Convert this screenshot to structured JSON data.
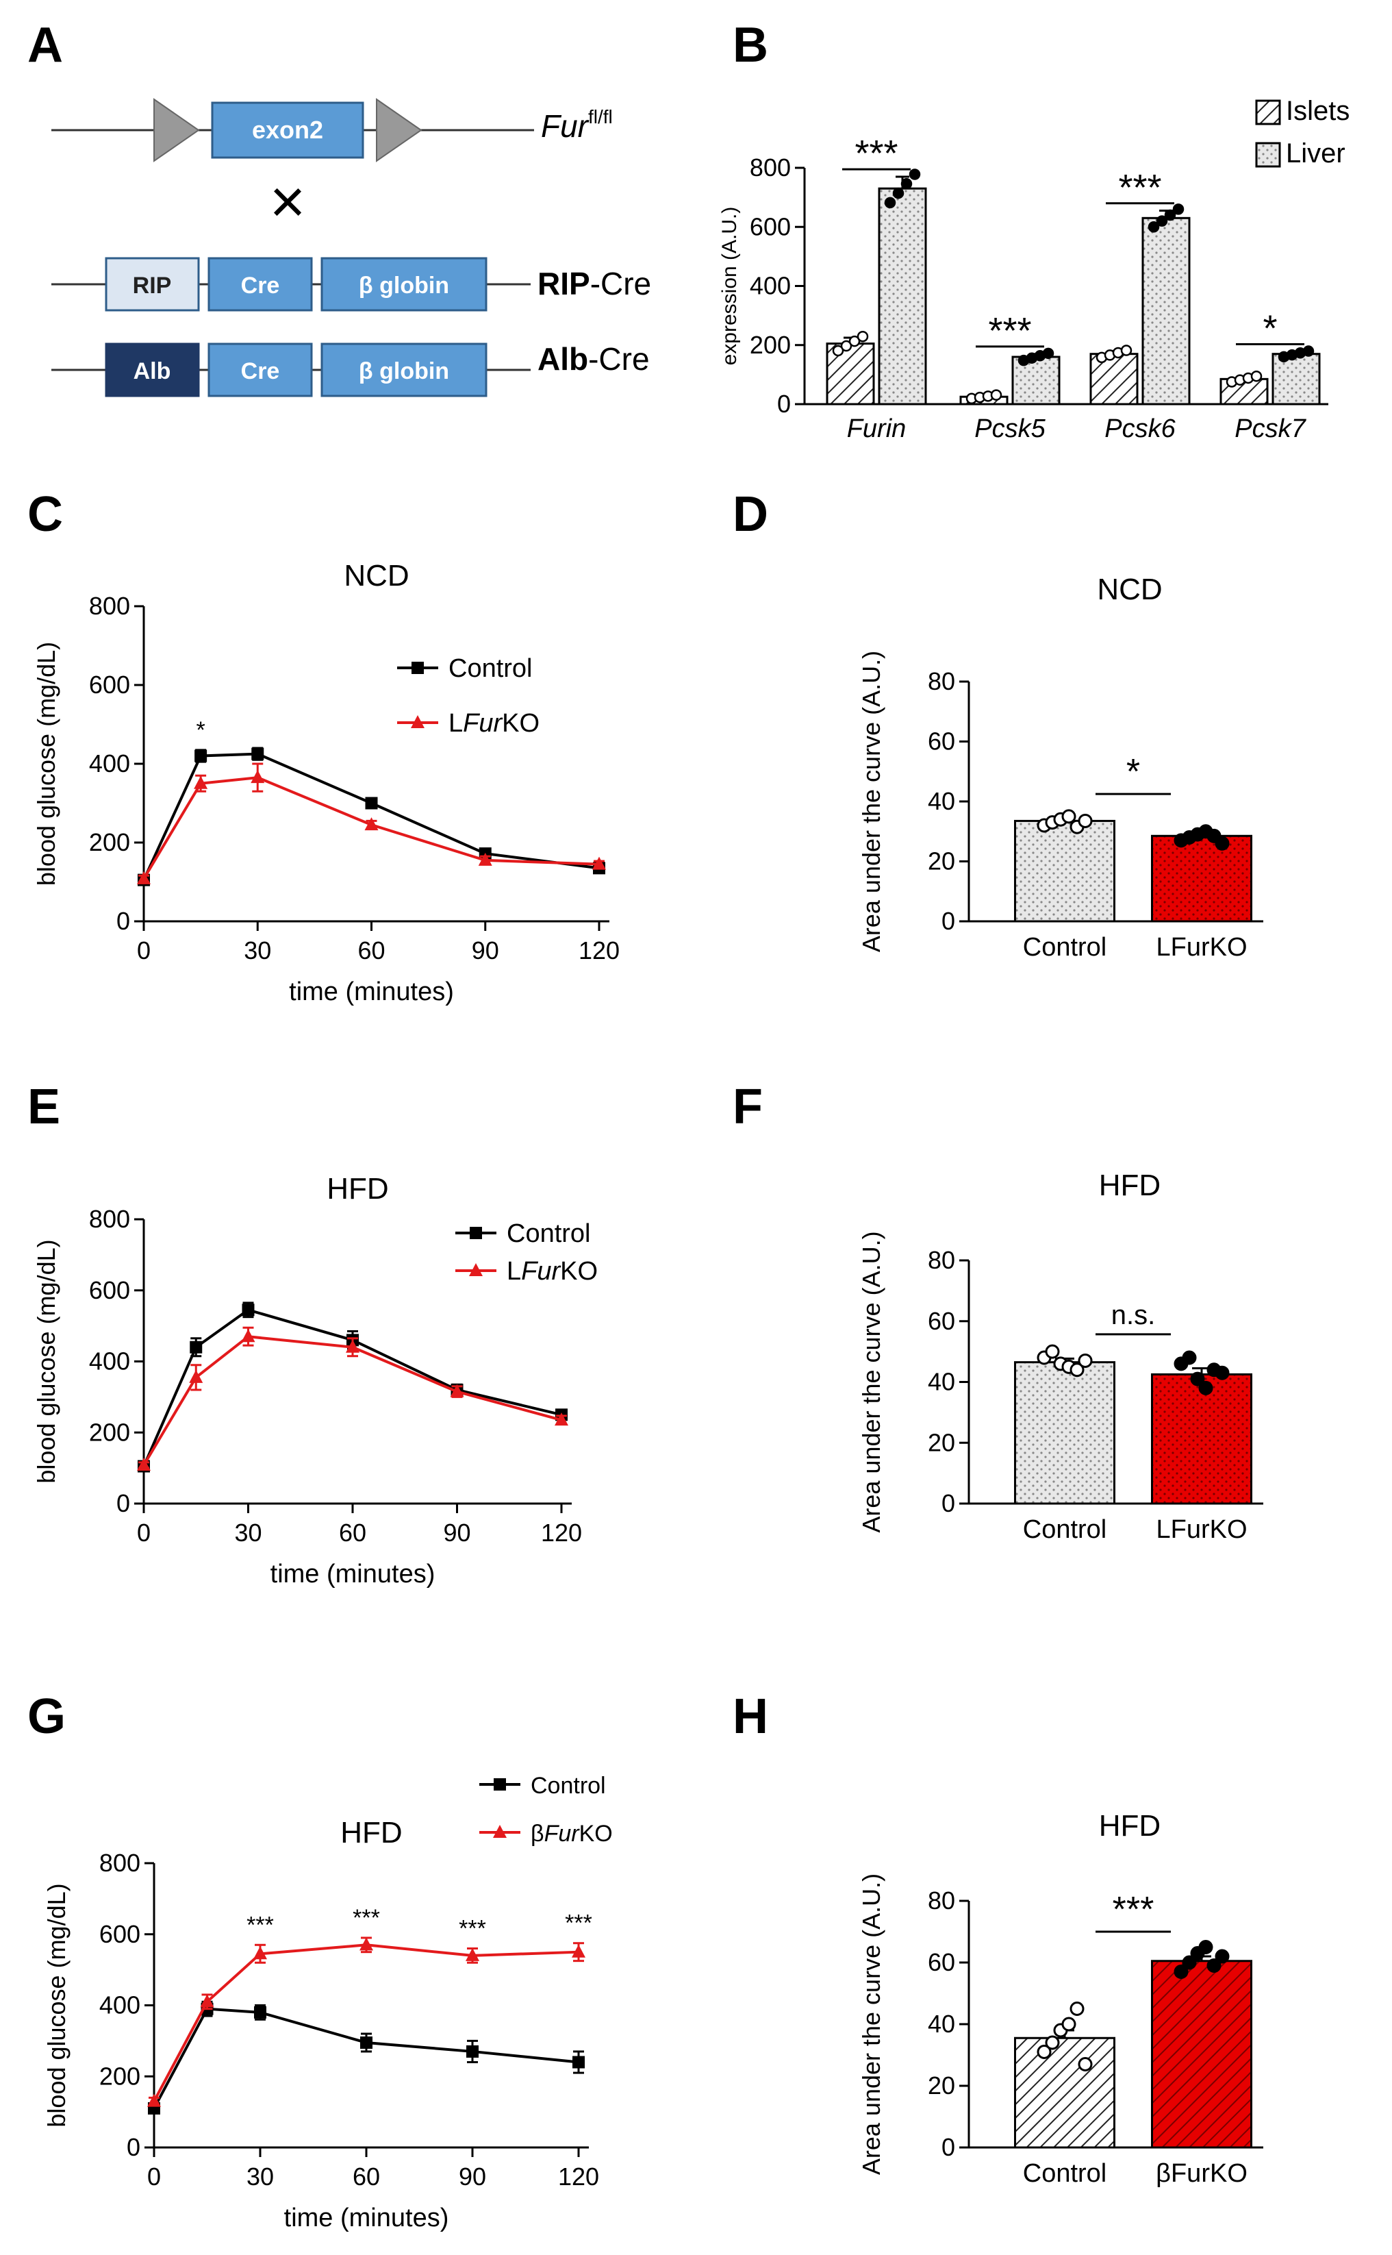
{
  "colors": {
    "control": "#000000",
    "lfurko": "#e31a1c",
    "bfurko": "#e31a1c",
    "exon": "#5b9bd5",
    "rip_box": "#dce6f2",
    "alb_box": "#1f3864",
    "triangle": "#999999",
    "bar_red": "#e60000",
    "bar_grey": "#e6e6e6"
  },
  "panels": {
    "A": {
      "letter": "A",
      "exon_label": "exon2",
      "fur_label": "Fur",
      "fur_sup": "fl/fl",
      "cross": "×",
      "rip_label": "RIP",
      "cre_label": "Cre",
      "globin_label": "β globin",
      "rip_line_bold": "RIP",
      "rip_line_rest": "-Cre",
      "alb_label": "Alb",
      "alb_line_bold": "Alb",
      "alb_line_rest": "-Cre"
    },
    "B": {
      "letter": "B"
    },
    "C": {
      "letter": "C"
    },
    "D": {
      "letter": "D"
    },
    "E": {
      "letter": "E"
    },
    "F": {
      "letter": "F"
    },
    "G": {
      "letter": "G"
    },
    "H": {
      "letter": "H"
    }
  },
  "chart_data": [
    {
      "id": "B",
      "type": "bar",
      "ylabel": "expression (A.U.)",
      "ylim": [
        0,
        800
      ],
      "yticks": [
        0,
        200,
        400,
        600,
        800
      ],
      "categories": [
        "Furin",
        "Pcsk5",
        "Pcsk6",
        "Pcsk7"
      ],
      "series": [
        {
          "name": "Islets",
          "values": [
            205,
            25,
            170,
            85
          ],
          "errors": [
            20,
            5,
            10,
            8
          ]
        },
        {
          "name": "Liver",
          "values": [
            730,
            160,
            630,
            170
          ],
          "errors": [
            40,
            10,
            25,
            8
          ]
        }
      ],
      "significance": [
        "***",
        "***",
        "***",
        "*"
      ],
      "legend": "top-right"
    },
    {
      "id": "C",
      "type": "line",
      "title": "NCD",
      "xlabel": "time (minutes)",
      "ylabel": "blood glucose (mg/dL)",
      "xlim": [
        0,
        120
      ],
      "ylim": [
        0,
        800
      ],
      "xticks": [
        0,
        30,
        60,
        90,
        120
      ],
      "yticks": [
        0,
        200,
        400,
        600,
        800
      ],
      "x": [
        0,
        15,
        30,
        60,
        90,
        120
      ],
      "series": [
        {
          "name": "Control",
          "values": [
            105,
            420,
            425,
            300,
            172,
            135
          ],
          "errors": [
            8,
            15,
            15,
            10,
            10,
            8
          ]
        },
        {
          "name": "LFurKO",
          "name_pre": "L",
          "name_it": "Fur",
          "name_post": "KO",
          "values": [
            108,
            350,
            365,
            245,
            155,
            145
          ],
          "errors": [
            8,
            20,
            35,
            10,
            10,
            8
          ]
        }
      ],
      "annotations": [
        {
          "x": 15,
          "text": "*"
        }
      ]
    },
    {
      "id": "D",
      "type": "bar",
      "title": "NCD",
      "ylabel": "Area under the curve (A.U.)",
      "ylim": [
        0,
        80
      ],
      "yticks": [
        0,
        20,
        40,
        60,
        80
      ],
      "categories": [
        "Control",
        "LFurKO"
      ],
      "values": [
        33.5,
        28.5
      ],
      "errors": [
        1.0,
        1.3
      ],
      "points": [
        [
          32,
          33,
          34,
          35,
          31.5,
          33.5
        ],
        [
          27,
          28,
          29,
          30,
          28.5,
          26
        ]
      ],
      "significance": "*"
    },
    {
      "id": "E",
      "type": "line",
      "title": "HFD",
      "xlabel": "time (minutes)",
      "ylabel": "blood glucose (mg/dL)",
      "xlim": [
        0,
        120
      ],
      "ylim": [
        0,
        800
      ],
      "xticks": [
        0,
        30,
        60,
        90,
        120
      ],
      "yticks": [
        0,
        200,
        400,
        600,
        800
      ],
      "x": [
        0,
        15,
        30,
        60,
        90,
        120
      ],
      "series": [
        {
          "name": "Control",
          "values": [
            105,
            440,
            545,
            460,
            320,
            250
          ],
          "errors": [
            8,
            25,
            20,
            25,
            15,
            12
          ]
        },
        {
          "name": "LFurKO",
          "name_pre": "L",
          "name_it": "Fur",
          "name_post": "KO",
          "values": [
            108,
            355,
            470,
            440,
            315,
            235
          ],
          "errors": [
            8,
            35,
            25,
            25,
            15,
            12
          ]
        }
      ]
    },
    {
      "id": "F",
      "type": "bar",
      "title": "HFD",
      "ylabel": "Area under the curve (A.U.)",
      "ylim": [
        0,
        80
      ],
      "yticks": [
        0,
        20,
        40,
        60,
        80
      ],
      "categories": [
        "Control",
        "LFurKO"
      ],
      "values": [
        46.5,
        42.5
      ],
      "errors": [
        1.2,
        2.0
      ],
      "points": [
        [
          48,
          50,
          46,
          45,
          44,
          47
        ],
        [
          46,
          48,
          41,
          38,
          44,
          43
        ]
      ],
      "significance": "n.s."
    },
    {
      "id": "G",
      "type": "line",
      "title": "HFD",
      "xlabel": "time (minutes)",
      "ylabel": "blood glucose (mg/dL)",
      "xlim": [
        0,
        120
      ],
      "ylim": [
        0,
        800
      ],
      "xticks": [
        0,
        30,
        60,
        90,
        120
      ],
      "yticks": [
        0,
        200,
        400,
        600,
        800
      ],
      "x": [
        0,
        15,
        30,
        60,
        90,
        120
      ],
      "series": [
        {
          "name": "Control",
          "values": [
            110,
            390,
            380,
            295,
            270,
            240
          ],
          "errors": [
            10,
            20,
            20,
            25,
            30,
            30
          ]
        },
        {
          "name": "βFurKO",
          "name_pre": "β",
          "name_it": "Fur",
          "name_post": "KO",
          "values": [
            130,
            410,
            545,
            570,
            540,
            550
          ],
          "errors": [
            10,
            20,
            25,
            20,
            20,
            25
          ]
        }
      ],
      "annotations": [
        {
          "x": 30,
          "text": "***"
        },
        {
          "x": 60,
          "text": "***"
        },
        {
          "x": 90,
          "text": "***"
        },
        {
          "x": 120,
          "text": "***"
        }
      ]
    },
    {
      "id": "H",
      "type": "bar",
      "title": "HFD",
      "ylabel": "Area under the curve (A.U.)",
      "ylim": [
        0,
        80
      ],
      "yticks": [
        0,
        20,
        40,
        60,
        80
      ],
      "categories": [
        "Control",
        "βFurKO"
      ],
      "values": [
        35.5,
        60.5
      ],
      "errors": [
        2.5,
        1.5
      ],
      "points": [
        [
          31,
          34,
          38,
          40,
          45,
          27
        ],
        [
          57,
          60,
          63,
          65,
          59,
          62
        ]
      ],
      "significance": "***"
    }
  ]
}
